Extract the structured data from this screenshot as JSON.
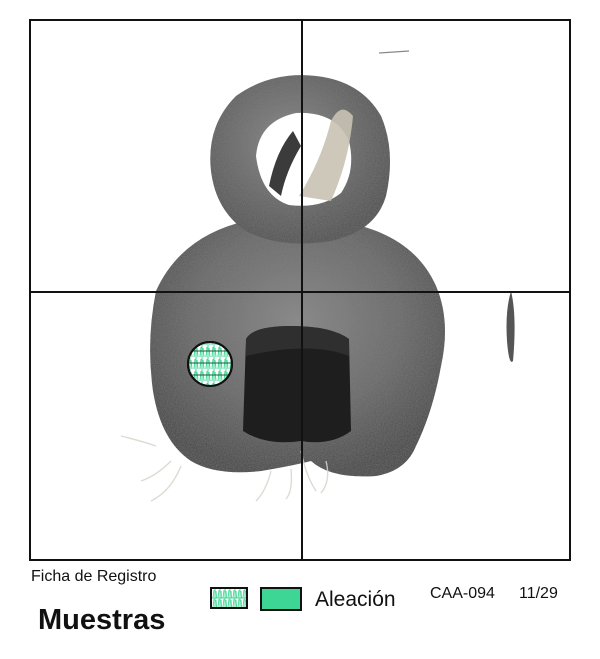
{
  "record_label": "Ficha de Registro",
  "title": "Muestras",
  "legend": {
    "label": "Aleación",
    "fill_color": "#3ed694",
    "pattern_color": "#3ed694"
  },
  "catalog_code": "CAA-094",
  "page_indicator": "11/29",
  "grid_line_color": "#111111"
}
